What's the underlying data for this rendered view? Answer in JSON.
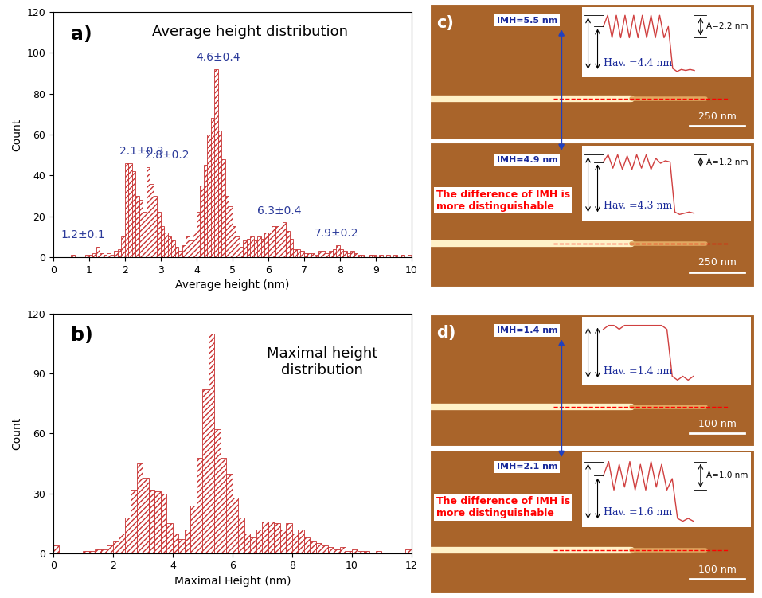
{
  "chart_data": [
    {
      "type": "histogram",
      "panel_label": "a)",
      "title": "Average height distribution",
      "x_label": "Average height (nm)",
      "y_label": "Count",
      "color": "#c83232",
      "bins": [
        0,
        0.1,
        0.2,
        0.3,
        0.4,
        0.5,
        0.6,
        0.7,
        0.8,
        0.9,
        1,
        1.1,
        1.2,
        1.3,
        1.4,
        1.5,
        1.6,
        1.7,
        1.8,
        1.9,
        2,
        2.1,
        2.2,
        2.3,
        2.4,
        2.5,
        2.6,
        2.7,
        2.8,
        2.9,
        3,
        3.1,
        3.2,
        3.3,
        3.4,
        3.5,
        3.6,
        3.7,
        3.8,
        3.9,
        4,
        4.1,
        4.2,
        4.3,
        4.4,
        4.5,
        4.6,
        4.7,
        4.8,
        4.9,
        5,
        5.1,
        5.2,
        5.3,
        5.4,
        5.5,
        5.6,
        5.7,
        5.8,
        5.9,
        6,
        6.1,
        6.2,
        6.3,
        6.4,
        6.5,
        6.6,
        6.7,
        6.8,
        6.9,
        7,
        7.1,
        7.2,
        7.3,
        7.4,
        7.5,
        7.6,
        7.7,
        7.8,
        7.9,
        8,
        8.1,
        8.2,
        8.3,
        8.4,
        8.5,
        8.6,
        8.7,
        8.8,
        8.9,
        9,
        9.1,
        9.2,
        9.3,
        9.4,
        9.5,
        9.6,
        9.7,
        9.8,
        9.9,
        10
      ],
      "counts": [
        0,
        0,
        0,
        0,
        0,
        1,
        0,
        0,
        0,
        1,
        1,
        2,
        5,
        2,
        1,
        2,
        1,
        3,
        4,
        10,
        46,
        46,
        42,
        30,
        28,
        22,
        44,
        36,
        30,
        22,
        15,
        12,
        10,
        8,
        5,
        3,
        6,
        10,
        8,
        12,
        22,
        35,
        45,
        60,
        68,
        92,
        62,
        48,
        30,
        25,
        15,
        10,
        5,
        8,
        9,
        10,
        8,
        10,
        9,
        12,
        12,
        15,
        15,
        16,
        17,
        13,
        9,
        4,
        4,
        3,
        2,
        2,
        2,
        1,
        3,
        3,
        2,
        3,
        4,
        6,
        4,
        3,
        2,
        3,
        2,
        1,
        1,
        0,
        1,
        1,
        0,
        1,
        0,
        1,
        0,
        1,
        0,
        1,
        0,
        1
      ],
      "xlim": [
        0,
        10
      ],
      "ylim": [
        0,
        120
      ],
      "xticks": [
        0,
        1,
        2,
        3,
        4,
        5,
        6,
        7,
        8,
        9,
        10
      ],
      "yticks": [
        0,
        20,
        40,
        60,
        80,
        100,
        120
      ],
      "annotations": [
        {
          "text": "1.2±0.1"
        },
        {
          "text": "2.1±0.3"
        },
        {
          "text": "2.8±0.2"
        },
        {
          "text": "4.6±0.4"
        },
        {
          "text": "6.3±0.4"
        },
        {
          "text": "7.9±0.2"
        }
      ]
    },
    {
      "type": "histogram",
      "panel_label": "b)",
      "title": "Maximal height\ndistribution",
      "x_label": "Maximal Height (nm)",
      "y_label": "Count",
      "color": "#c83232",
      "bins": [
        0,
        0.2,
        0.4,
        0.6,
        0.8,
        1,
        1.2,
        1.4,
        1.6,
        1.8,
        2,
        2.2,
        2.4,
        2.6,
        2.8,
        3,
        3.2,
        3.4,
        3.6,
        3.8,
        4,
        4.2,
        4.4,
        4.6,
        4.8,
        5,
        5.2,
        5.4,
        5.6,
        5.8,
        6,
        6.2,
        6.4,
        6.6,
        6.8,
        7,
        7.2,
        7.4,
        7.6,
        7.8,
        8,
        8.2,
        8.4,
        8.6,
        8.8,
        9,
        9.2,
        9.4,
        9.6,
        9.8,
        10,
        10.2,
        10.4,
        10.6,
        10.8,
        11,
        11.2,
        11.4,
        11.6,
        11.8,
        12
      ],
      "counts": [
        4,
        0,
        0,
        0,
        0,
        1,
        1,
        2,
        2,
        4,
        6,
        10,
        18,
        32,
        45,
        38,
        32,
        31,
        30,
        15,
        10,
        7,
        12,
        24,
        48,
        82,
        110,
        62,
        48,
        40,
        28,
        18,
        10,
        8,
        12,
        16,
        16,
        15,
        12,
        15,
        10,
        12,
        8,
        6,
        5,
        4,
        3,
        2,
        3,
        1,
        2,
        1,
        1,
        0,
        1,
        0,
        0,
        0,
        0,
        2
      ],
      "xlim": [
        0,
        12
      ],
      "ylim": [
        0,
        120
      ],
      "xticks": [
        0,
        2,
        4,
        6,
        8,
        10,
        12
      ],
      "yticks": [
        0,
        30,
        60,
        90,
        120
      ],
      "annotations": []
    }
  ],
  "images": [
    {
      "label": "c)",
      "rows": [
        {
          "imh": "IMH=5.5 nm",
          "hav": "Hav. =4.4 nm",
          "amplitude": "A=2.2 nm",
          "scale_bar": "250 nm",
          "profile": [
            4.4,
            5.5,
            3.3,
            5.5,
            3.3,
            5.5,
            3.3,
            5.5,
            3.3,
            5.5,
            3.3,
            5.5,
            3.3,
            5.5,
            3.3,
            4.4,
            0.3,
            0.0,
            0.2,
            0.1,
            0.2,
            0.1
          ]
        },
        {
          "imh": "IMH=4.9 nm",
          "hav": "Hav. =4.3 nm",
          "amplitude": "A=1.2 nm",
          "scale_bar": "250 nm",
          "note": "The difference of IMH is\nmore distinguishable",
          "profile": [
            4.3,
            4.9,
            3.8,
            4.9,
            3.7,
            4.8,
            3.7,
            4.9,
            3.8,
            4.9,
            3.7,
            4.6,
            4.2,
            4.4,
            4.3,
            0.2,
            0.0,
            0.1,
            0.2,
            0.1
          ]
        }
      ]
    },
    {
      "label": "d)",
      "rows": [
        {
          "imh": "IMH=1.4 nm",
          "hav": "Hav. =1.4 nm",
          "scale_bar": "100 nm",
          "profile": [
            1.3,
            1.4,
            1.4,
            1.3,
            1.4,
            1.4,
            1.4,
            1.4,
            1.4,
            1.4,
            1.4,
            1.4,
            1.3,
            0.1,
            0.0,
            0.1,
            0.0,
            0.1
          ]
        },
        {
          "imh": "IMH=2.1 nm",
          "hav": "Hav. =1.6 nm",
          "amplitude": "A=1.0 nm",
          "scale_bar": "100 nm",
          "note": "The difference of IMH is\nmore distinguishable",
          "profile": [
            1.6,
            2.1,
            1.1,
            2.0,
            1.2,
            2.1,
            1.1,
            2.0,
            1.1,
            2.1,
            1.2,
            2.0,
            1.1,
            1.5,
            0.1,
            0.0,
            0.1,
            0.0
          ]
        }
      ]
    }
  ]
}
